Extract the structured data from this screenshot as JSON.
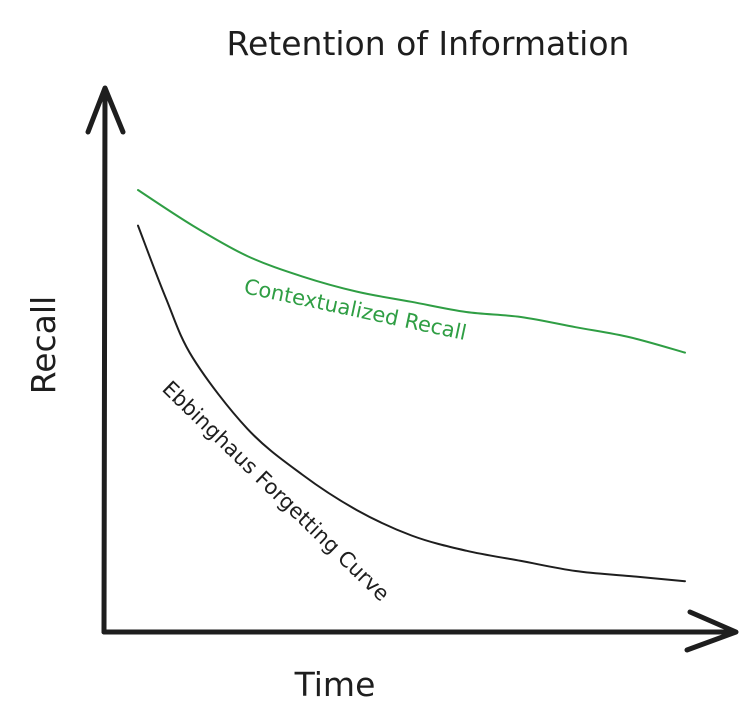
{
  "chart_data": {
    "type": "line",
    "title": "Retention of Information",
    "xlabel": "Time",
    "ylabel": "Recall",
    "xlim": [
      0,
      100
    ],
    "ylim": [
      0,
      100
    ],
    "grid": false,
    "series": [
      {
        "name": "Contextualized Recall",
        "color": "#2f9e44",
        "x": [
          0,
          10,
          20,
          30,
          40,
          50,
          60,
          70,
          80,
          90,
          100
        ],
        "values": [
          87,
          80,
          74,
          70,
          67,
          65,
          63,
          62,
          60,
          58,
          55
        ]
      },
      {
        "name": "Ebbinghaus Forgetting Curve",
        "color": "#1e1e1e",
        "x": [
          0,
          5,
          10,
          20,
          30,
          40,
          50,
          60,
          70,
          80,
          90,
          100
        ],
        "values": [
          80,
          66,
          54,
          40,
          31,
          24,
          19,
          16,
          14,
          12,
          11,
          10
        ]
      }
    ]
  }
}
